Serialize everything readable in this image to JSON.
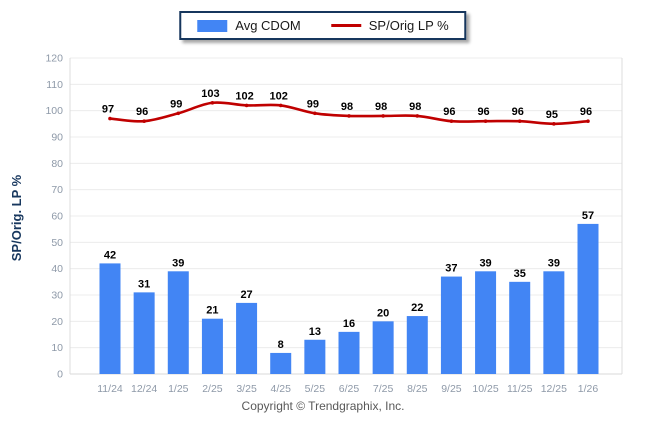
{
  "legend": {
    "items": [
      {
        "label": "Avg CDOM",
        "type": "bar",
        "color": "#4285F4"
      },
      {
        "label": "SP/Orig LP %",
        "type": "line",
        "color": "#C00000"
      }
    ],
    "border_color": "#16365D"
  },
  "footer": {
    "text": "Copyright © Trendgraphix, Inc."
  },
  "chart_data": {
    "type": "bar",
    "title": "",
    "xlabel": "",
    "ylabel": "SP/Orig. LP %",
    "ylim": [
      0,
      120
    ],
    "ytick_step": 10,
    "grid": "horizontal",
    "legend_position": "top-center",
    "categories": [
      "11/24",
      "12/24",
      "1/25",
      "2/25",
      "3/25",
      "4/25",
      "5/25",
      "6/25",
      "7/25",
      "8/25",
      "9/25",
      "10/25",
      "11/25",
      "12/25",
      "1/26"
    ],
    "series": [
      {
        "name": "Avg CDOM",
        "type": "bar",
        "color": "#4285F4",
        "values": [
          42,
          31,
          39,
          21,
          27,
          8,
          13,
          16,
          20,
          22,
          37,
          39,
          35,
          39,
          57
        ]
      },
      {
        "name": "SP/Orig LP %",
        "type": "line",
        "color": "#C00000",
        "values": [
          97,
          96,
          99,
          103,
          102,
          102,
          99,
          98,
          98,
          98,
          96,
          96,
          96,
          95,
          96
        ]
      }
    ],
    "colors": {
      "grid_line": "#ececec",
      "axis_edge": "#dcdcdc",
      "baseline": "#d9d9d9",
      "tick_text": "#8e99a8",
      "axis_title": "#17375E",
      "value_label": "#000000",
      "footer_text": "#595959"
    }
  }
}
